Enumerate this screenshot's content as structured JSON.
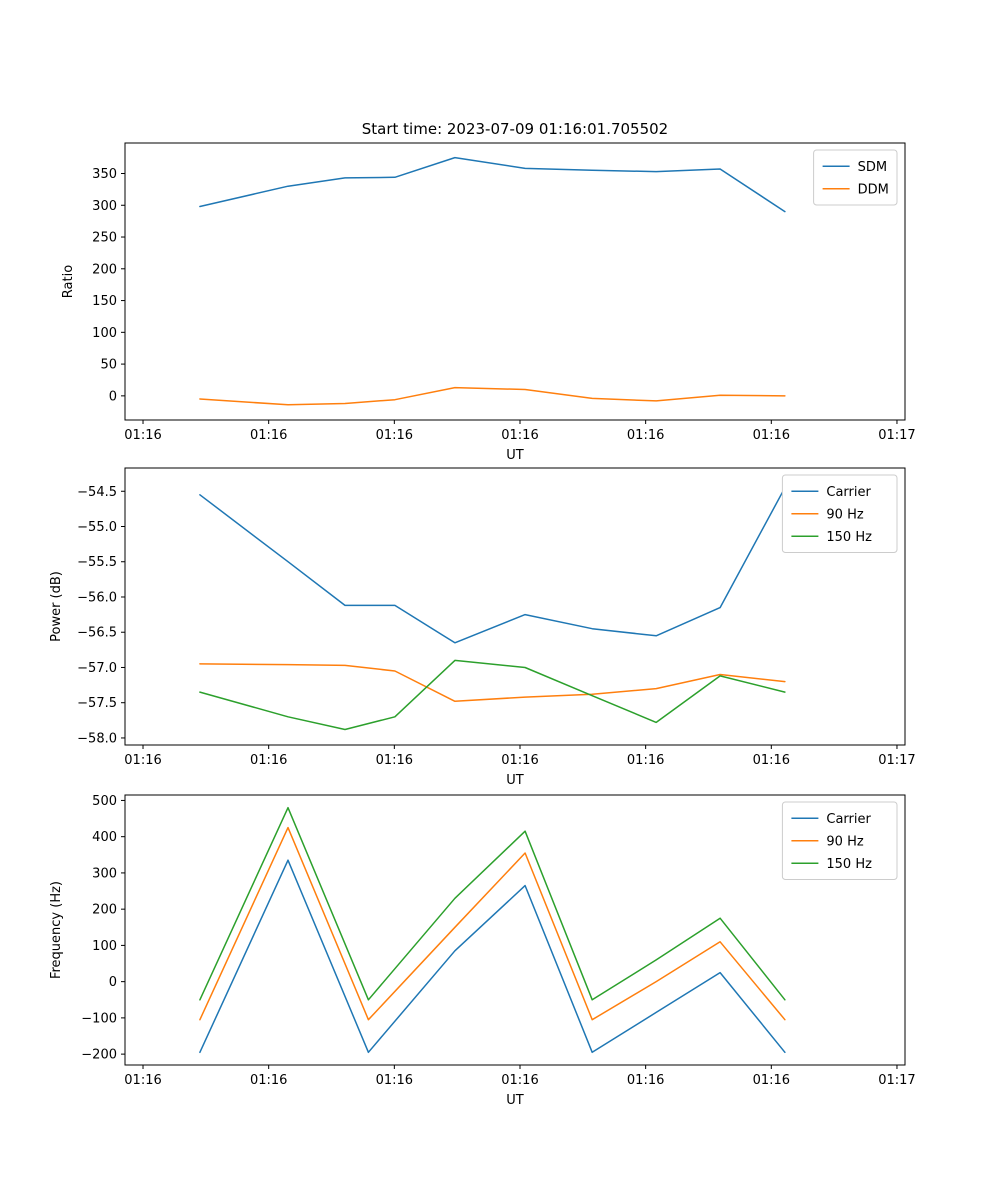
{
  "title": "Start time: 2023-07-09 01:16:01.705502",
  "colors": {
    "blue": "#1f77b4",
    "orange": "#ff7f0e",
    "green": "#2ca02c"
  },
  "chart_data": [
    {
      "name": "ratio",
      "type": "line",
      "xlabel": "UT",
      "ylabel": "Ratio",
      "x_tick_labels": [
        "01:16",
        "01:16",
        "01:16",
        "01:16",
        "01:16",
        "01:16",
        "01:17"
      ],
      "y_tick_values": [
        0,
        50,
        100,
        150,
        200,
        250,
        300,
        350
      ],
      "y_tick_labels": [
        "0",
        "50",
        "100",
        "150",
        "200",
        "250",
        "300",
        "350"
      ],
      "ylim": [
        -38,
        398
      ],
      "grid": false,
      "legend_position": "upper right",
      "x": [
        0.096,
        0.209,
        0.282,
        0.346,
        0.423,
        0.513,
        0.599,
        0.681,
        0.763,
        0.846
      ],
      "series": [
        {
          "name": "SDM",
          "color": "#1f77b4",
          "values": [
            298,
            330,
            343,
            344,
            375,
            358,
            355,
            353,
            357,
            290
          ]
        },
        {
          "name": "DDM",
          "color": "#ff7f0e",
          "values": [
            -5,
            -14,
            -12,
            -6,
            13,
            10,
            -4,
            -8,
            1,
            0
          ]
        }
      ]
    },
    {
      "name": "power",
      "type": "line",
      "xlabel": "UT",
      "ylabel": "Power (dB)",
      "x_tick_labels": [
        "01:16",
        "01:16",
        "01:16",
        "01:16",
        "01:16",
        "01:16",
        "01:17"
      ],
      "y_tick_values": [
        -58.0,
        -57.5,
        -57.0,
        -56.5,
        -56.0,
        -55.5,
        -55.0,
        -54.5
      ],
      "y_tick_labels": [
        "−58.0",
        "−57.5",
        "−57.0",
        "−56.5",
        "−56.0",
        "−55.5",
        "−55.0",
        "−54.5"
      ],
      "ylim": [
        -58.1,
        -54.17
      ],
      "grid": false,
      "legend_position": "upper right",
      "x": [
        0.096,
        0.209,
        0.282,
        0.346,
        0.423,
        0.513,
        0.599,
        0.681,
        0.763,
        0.846
      ],
      "series": [
        {
          "name": "Carrier",
          "color": "#1f77b4",
          "values": [
            -54.55,
            -55.5,
            -56.12,
            -56.12,
            -56.65,
            -56.25,
            -56.45,
            -56.55,
            -56.15,
            -54.45
          ]
        },
        {
          "name": "90 Hz",
          "color": "#ff7f0e",
          "values": [
            -56.95,
            -56.96,
            -56.97,
            -57.05,
            -57.48,
            -57.42,
            -57.38,
            -57.3,
            -57.1,
            -57.2
          ]
        },
        {
          "name": "150 Hz",
          "color": "#2ca02c",
          "values": [
            -57.35,
            -57.7,
            -57.88,
            -57.7,
            -56.9,
            -57.0,
            -57.4,
            -57.78,
            -57.12,
            -57.35
          ]
        }
      ]
    },
    {
      "name": "frequency",
      "type": "line",
      "xlabel": "UT",
      "ylabel": "Frequency (Hz)",
      "x_tick_labels": [
        "01:16",
        "01:16",
        "01:16",
        "01:16",
        "01:16",
        "01:16",
        "01:17"
      ],
      "y_tick_values": [
        -200,
        -100,
        0,
        100,
        200,
        300,
        400,
        500
      ],
      "y_tick_labels": [
        "−200",
        "−100",
        "0",
        "100",
        "200",
        "300",
        "400",
        "500"
      ],
      "ylim": [
        -230,
        515
      ],
      "grid": false,
      "legend_position": "upper right",
      "x": [
        0.096,
        0.209,
        0.312,
        0.423,
        0.513,
        0.599,
        0.681,
        0.763,
        0.846
      ],
      "series": [
        {
          "name": "Carrier",
          "color": "#1f77b4",
          "values": [
            -195,
            335,
            -195,
            85,
            265,
            -195,
            -85,
            25,
            -195
          ]
        },
        {
          "name": "90 Hz",
          "color": "#ff7f0e",
          "values": [
            -105,
            425,
            -105,
            150,
            355,
            -105,
            0,
            110,
            -105
          ]
        },
        {
          "name": "150 Hz",
          "color": "#2ca02c",
          "values": [
            -50,
            480,
            -50,
            230,
            415,
            -50,
            60,
            175,
            -50
          ]
        }
      ]
    }
  ]
}
